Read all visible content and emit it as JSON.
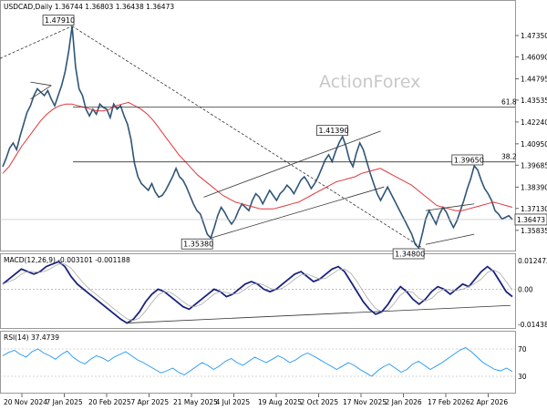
{
  "colors": {
    "price": "#2f5577",
    "ma": "#e2373b",
    "macd_line": "#1a237e",
    "macd_signal": "#aaaaaa",
    "rsi": "#2196f3",
    "trend": "#333333",
    "channel": "#333333",
    "fib": "#333333",
    "grid": "#dddddd"
  },
  "chart_data": [
    {
      "type": "line",
      "title": "USDCAD,Daily  1.36744 1.36803 1.36438 1.36473",
      "watermark": "ActionForex",
      "ylim": [
        1.348,
        1.487
      ],
      "y_ticks": [
        1.35835,
        1.3713,
        1.3839,
        1.39685,
        1.4095,
        1.4224,
        1.43535,
        1.44795,
        1.4609,
        1.4735
      ],
      "y_tick_labels": [
        "1.35835",
        "1.37130",
        "1.38390",
        "1.39685",
        "1.40950",
        "1.42240",
        "1.43535",
        "1.44795",
        "1.46090",
        "1.47350"
      ],
      "x_labels": [
        "20 Nov 2024",
        "7 Jan 2025",
        "20 Feb 2025",
        "7 Apr 2025",
        "21 May 2025",
        "4 Jul 2025",
        "19 Aug 2025",
        "2 Oct 2025",
        "17 Nov 2025",
        "2 Jan 2026",
        "17 Feb 2026",
        "2 Apr 2026"
      ],
      "current_price_label": "1.36473",
      "current_price": 1.36473,
      "fib_levels": [
        {
          "label": "61.8",
          "value": 1.4313
        },
        {
          "label": "38.2",
          "value": 1.3988
        }
      ],
      "annotations": [
        {
          "label": "1.47910",
          "value": 1.4791
        },
        {
          "label": "1.41390",
          "value": 1.4139
        },
        {
          "label": "1.35380",
          "value": 1.3538
        },
        {
          "label": "1.39650",
          "value": 1.3965
        },
        {
          "label": "1.34800",
          "value": 1.348
        }
      ],
      "series": [
        {
          "role": "price",
          "values": [
            1.396,
            1.401,
            1.407,
            1.41,
            1.406,
            1.414,
            1.421,
            1.428,
            1.432,
            1.438,
            1.442,
            1.44,
            1.438,
            1.441,
            1.436,
            1.432,
            1.438,
            1.444,
            1.452,
            1.464,
            1.4791,
            1.455,
            1.442,
            1.438,
            1.43,
            1.426,
            1.43,
            1.427,
            1.433,
            1.431,
            1.43,
            1.425,
            1.433,
            1.43,
            1.432,
            1.426,
            1.421,
            1.412,
            1.398,
            1.39,
            1.386,
            1.384,
            1.382,
            1.386,
            1.381,
            1.378,
            1.379,
            1.382,
            1.386,
            1.39,
            1.395,
            1.39,
            1.388,
            1.384,
            1.379,
            1.374,
            1.37,
            1.368,
            1.362,
            1.356,
            1.3538,
            1.36,
            1.367,
            1.372,
            1.369,
            1.365,
            1.362,
            1.365,
            1.37,
            1.374,
            1.372,
            1.37,
            1.376,
            1.38,
            1.378,
            1.374,
            1.378,
            1.382,
            1.379,
            1.376,
            1.38,
            1.382,
            1.385,
            1.383,
            1.38,
            1.384,
            1.388,
            1.39,
            1.387,
            1.383,
            1.386,
            1.39,
            1.395,
            1.4,
            1.403,
            1.399,
            1.405,
            1.41,
            1.4139,
            1.408,
            1.4,
            1.396,
            1.404,
            1.41,
            1.406,
            1.399,
            1.392,
            1.386,
            1.38,
            1.376,
            1.38,
            1.384,
            1.38,
            1.376,
            1.372,
            1.368,
            1.364,
            1.36,
            1.356,
            1.35,
            1.348,
            1.356,
            1.365,
            1.37,
            1.366,
            1.362,
            1.368,
            1.372,
            1.369,
            1.364,
            1.36,
            1.364,
            1.37,
            1.376,
            1.383,
            1.389,
            1.3965,
            1.394,
            1.388,
            1.383,
            1.38,
            1.376,
            1.37,
            1.368,
            1.365,
            1.366,
            1.367,
            1.3647
          ]
        },
        {
          "role": "moving-average",
          "values": [
            1.392,
            1.396,
            1.402,
            1.408,
            1.413,
            1.418,
            1.423,
            1.427,
            1.43,
            1.432,
            1.433,
            1.433,
            1.432,
            1.431,
            1.43,
            1.429,
            1.429,
            1.43,
            1.432,
            1.433,
            1.434,
            1.432,
            1.43,
            1.427,
            1.423,
            1.418,
            1.413,
            1.408,
            1.403,
            1.399,
            1.395,
            1.391,
            1.388,
            1.385,
            1.382,
            1.379,
            1.377,
            1.375,
            1.374,
            1.373,
            1.372,
            1.371,
            1.371,
            1.371,
            1.372,
            1.373,
            1.374,
            1.375,
            1.377,
            1.379,
            1.381,
            1.383,
            1.385,
            1.387,
            1.388,
            1.389,
            1.39,
            1.392,
            1.393,
            1.394,
            1.395,
            1.393,
            1.391,
            1.389,
            1.387,
            1.385,
            1.382,
            1.379,
            1.376,
            1.373,
            1.372,
            1.371,
            1.37,
            1.37,
            1.371,
            1.372,
            1.373,
            1.374,
            1.375,
            1.374,
            1.373,
            1.372
          ]
        },
        {
          "role": "macd",
          "min": -0.014389,
          "max": 0.012472,
          "values": [
            0.002,
            0.004,
            0.006,
            0.008,
            0.007,
            0.006,
            0.007,
            0.009,
            0.01,
            0.011,
            0.009,
            0.005,
            0.002,
            0.0,
            -0.002,
            -0.004,
            -0.006,
            -0.008,
            -0.01,
            -0.012,
            -0.0135,
            -0.012,
            -0.009,
            -0.005,
            -0.002,
            0.0,
            -0.001,
            -0.003,
            -0.005,
            -0.007,
            -0.008,
            -0.006,
            -0.004,
            -0.002,
            0.0,
            -0.001,
            -0.003,
            -0.002,
            0.0,
            0.002,
            0.003,
            0.002,
            0.0,
            -0.001,
            0.0,
            0.002,
            0.004,
            0.006,
            0.007,
            0.005,
            0.003,
            0.004,
            0.006,
            0.008,
            0.009,
            0.007,
            0.003,
            -0.001,
            -0.005,
            -0.008,
            -0.01,
            -0.009,
            -0.006,
            -0.002,
            0.001,
            -0.001,
            -0.004,
            -0.006,
            -0.004,
            -0.001,
            0.001,
            0.0,
            -0.002,
            0.0,
            0.002,
            0.001,
            0.004,
            0.007,
            0.009,
            0.007,
            0.003,
            -0.001,
            -0.003
          ]
        },
        {
          "role": "rsi",
          "min": 10,
          "max": 90,
          "values": [
            60,
            65,
            68,
            62,
            58,
            66,
            70,
            64,
            60,
            55,
            62,
            67,
            58,
            52,
            48,
            55,
            60,
            57,
            52,
            58,
            62,
            66,
            60,
            54,
            50,
            45,
            40,
            35,
            38,
            42,
            36,
            32,
            38,
            44,
            50,
            46,
            40,
            45,
            52,
            56,
            50,
            46,
            52,
            58,
            54,
            50,
            55,
            60,
            56,
            50,
            54,
            60,
            64,
            60,
            55,
            50,
            45,
            40,
            45,
            50,
            46,
            40,
            35,
            30,
            38,
            44,
            48,
            42,
            36,
            40,
            48,
            52,
            46,
            40,
            45,
            50,
            56,
            62,
            68,
            72,
            66,
            58,
            50,
            45,
            40,
            38,
            42,
            37
          ]
        }
      ],
      "macd_panel": {
        "title": "MACD(12,26,9) -0.003101 -0.001188",
        "y_ticks": [
          0.012472,
          0.0,
          -0.014389
        ],
        "y_tick_labels": [
          "0.012472",
          "0.00",
          "-0.014389"
        ]
      },
      "rsi_panel": {
        "title": "RSI(14) 37.4739",
        "y_ticks": [
          70,
          30
        ],
        "y_tick_labels": [
          "70",
          "30"
        ]
      }
    }
  ]
}
